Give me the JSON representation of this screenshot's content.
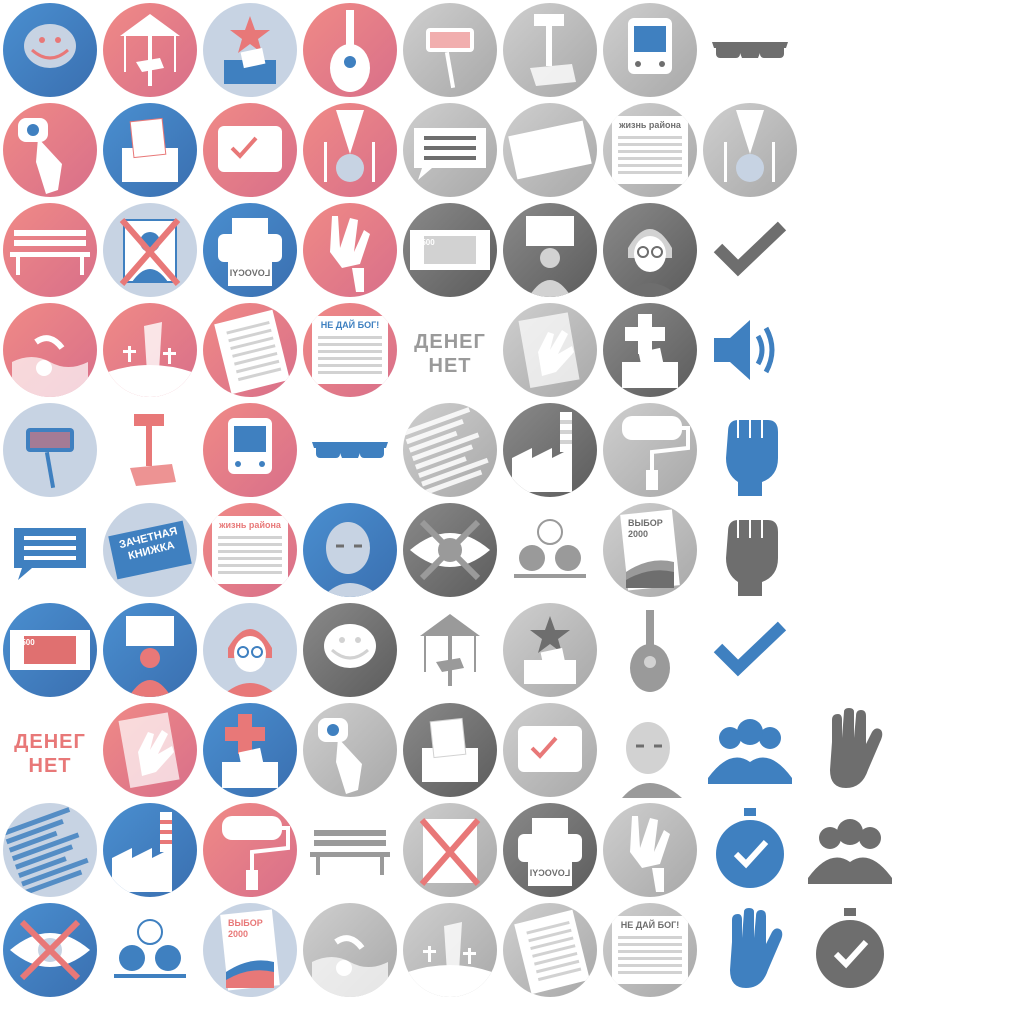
{
  "palette": {
    "red": "#e87878",
    "blue": "#3f80c0",
    "light_blue": "#c7d3e3",
    "dark_gray": "#6e6e6e",
    "mid_gray": "#9a9a9a",
    "light_gray": "#d2d2d2",
    "white": "#ffffff"
  },
  "labels": {
    "money_none": "ДЕНЕГ\nНЕТ",
    "record_book": "ЗАЧЕТНАЯ\nКНИЖКА",
    "district_life": "жизнь района",
    "god_forbid": "НЕ ДАЙ БОГ!",
    "choice_2000": "ВЫБОР\n2000",
    "banknote": "500",
    "mirrored_print": "LOVOCYI"
  },
  "icons": [
    {
      "row": 0,
      "col": 0,
      "name": "troll-face-icon",
      "theme": "blue-bg",
      "label": null
    },
    {
      "row": 0,
      "col": 1,
      "name": "carousel-icon",
      "theme": "red",
      "label": null
    },
    {
      "row": 0,
      "col": 2,
      "name": "star-ballot-icon",
      "theme": "light-blue",
      "label": null
    },
    {
      "row": 0,
      "col": 3,
      "name": "guitar-icon",
      "theme": "red",
      "label": null
    },
    {
      "row": 0,
      "col": 4,
      "name": "selfie-stick-icon",
      "theme": "gray",
      "label": null
    },
    {
      "row": 0,
      "col": 5,
      "name": "hammer-icon",
      "theme": "gray",
      "label": null
    },
    {
      "row": 0,
      "col": 6,
      "name": "bus-speaker-icon",
      "theme": "gray",
      "label": null
    },
    {
      "row": 0,
      "col": 7,
      "name": "sunglasses-icon",
      "theme": "dark",
      "label": null
    },
    {
      "row": 1,
      "col": 0,
      "name": "touch-button-icon",
      "theme": "red",
      "label": null
    },
    {
      "row": 1,
      "col": 1,
      "name": "ballot-box-icon",
      "theme": "blue",
      "label": null
    },
    {
      "row": 1,
      "col": 2,
      "name": "tv-vote-icon",
      "theme": "red",
      "label": null
    },
    {
      "row": 1,
      "col": 3,
      "name": "medal-cutlery-icon",
      "theme": "red",
      "label": null
    },
    {
      "row": 1,
      "col": 4,
      "name": "chat-bubble-icon",
      "theme": "gray",
      "label": null
    },
    {
      "row": 1,
      "col": 5,
      "name": "record-book-icon",
      "theme": "gray",
      "label": "record_book"
    },
    {
      "row": 1,
      "col": 6,
      "name": "newspaper-icon",
      "theme": "gray",
      "label": "district_life"
    },
    {
      "row": 1,
      "col": 7,
      "name": "medal-cutlery-icon",
      "theme": "gray",
      "label": null
    },
    {
      "row": 2,
      "col": 0,
      "name": "bench-icon",
      "theme": "red",
      "label": null
    },
    {
      "row": 2,
      "col": 1,
      "name": "crossed-candidate-icon",
      "theme": "light-blue",
      "label": null
    },
    {
      "row": 2,
      "col": 2,
      "name": "printer-icon",
      "theme": "blue",
      "label": "mirrored_print"
    },
    {
      "row": 2,
      "col": 3,
      "name": "thumbs-down-hand-icon",
      "theme": "red",
      "label": null
    },
    {
      "row": 2,
      "col": 4,
      "name": "banknote-icon",
      "theme": "gray-dark",
      "label": "banknote"
    },
    {
      "row": 2,
      "col": 5,
      "name": "protester-icon",
      "theme": "gray-dark",
      "label": null
    },
    {
      "row": 2,
      "col": 6,
      "name": "grandma-icon",
      "theme": "gray-dark",
      "label": null
    },
    {
      "row": 2,
      "col": 7,
      "name": "checkmark-icon",
      "theme": "dark",
      "label": null
    },
    {
      "row": 3,
      "col": 0,
      "name": "swimmer-icon",
      "theme": "red",
      "label": null
    },
    {
      "row": 3,
      "col": 1,
      "name": "graveyard-icon",
      "theme": "red",
      "label": null
    },
    {
      "row": 3,
      "col": 2,
      "name": "document-list-icon",
      "theme": "red",
      "label": null
    },
    {
      "row": 3,
      "col": 3,
      "name": "newspaper-icon",
      "theme": "red",
      "label": "god_forbid"
    },
    {
      "row": 3,
      "col": 4,
      "name": "money-none-text-icon",
      "theme": "gray-text",
      "label": "money_none"
    },
    {
      "row": 3,
      "col": 5,
      "name": "hand-paper-icon",
      "theme": "gray",
      "label": null
    },
    {
      "row": 3,
      "col": 6,
      "name": "medical-ballot-icon",
      "theme": "gray-dark",
      "label": null
    },
    {
      "row": 3,
      "col": 7,
      "name": "speaker-icon",
      "theme": "blue-plain",
      "label": null
    },
    {
      "row": 4,
      "col": 0,
      "name": "selfie-stick-icon",
      "theme": "light-blue",
      "label": null
    },
    {
      "row": 4,
      "col": 1,
      "name": "hammer-icon",
      "theme": "red-plain",
      "label": null
    },
    {
      "row": 4,
      "col": 2,
      "name": "bus-speaker-icon",
      "theme": "red",
      "label": null
    },
    {
      "row": 4,
      "col": 3,
      "name": "sunglasses-icon",
      "theme": "blue-plain",
      "label": null
    },
    {
      "row": 4,
      "col": 4,
      "name": "shredded-paper-icon",
      "theme": "gray",
      "label": null
    },
    {
      "row": 4,
      "col": 5,
      "name": "factory-icon",
      "theme": "gray-dark",
      "label": null
    },
    {
      "row": 4,
      "col": 6,
      "name": "paint-roller-icon",
      "theme": "gray",
      "label": null
    },
    {
      "row": 4,
      "col": 7,
      "name": "raised-fist-icon",
      "theme": "blue-plain",
      "label": null
    },
    {
      "row": 5,
      "col": 0,
      "name": "chat-bubble-icon",
      "theme": "blue-plain",
      "label": null
    },
    {
      "row": 5,
      "col": 1,
      "name": "record-book-icon",
      "theme": "light-blue",
      "label": "record_book"
    },
    {
      "row": 5,
      "col": 2,
      "name": "newspaper-icon",
      "theme": "red",
      "label": "district_life"
    },
    {
      "row": 5,
      "col": 3,
      "name": "politician-portrait-icon",
      "theme": "blue",
      "label": null
    },
    {
      "row": 5,
      "col": 4,
      "name": "crossed-eye-icon",
      "theme": "gray-dark",
      "label": null
    },
    {
      "row": 5,
      "col": 5,
      "name": "lottery-balls-icon",
      "theme": "gray-plain",
      "label": null
    },
    {
      "row": 5,
      "col": 6,
      "name": "choice-2000-icon",
      "theme": "gray",
      "label": "choice_2000"
    },
    {
      "row": 5,
      "col": 7,
      "name": "raised-fist-icon",
      "theme": "dark",
      "label": null
    },
    {
      "row": 6,
      "col": 0,
      "name": "banknote-icon",
      "theme": "blue",
      "label": "banknote"
    },
    {
      "row": 6,
      "col": 1,
      "name": "protester-icon",
      "theme": "blue",
      "label": null
    },
    {
      "row": 6,
      "col": 2,
      "name": "grandma-icon",
      "theme": "light-blue",
      "label": null
    },
    {
      "row": 6,
      "col": 3,
      "name": "troll-face-icon",
      "theme": "gray-dark",
      "label": null
    },
    {
      "row": 6,
      "col": 4,
      "name": "carousel-icon",
      "theme": "gray-plain",
      "label": null
    },
    {
      "row": 6,
      "col": 5,
      "name": "star-ballot-icon",
      "theme": "gray",
      "label": null
    },
    {
      "row": 6,
      "col": 6,
      "name": "guitar-icon",
      "theme": "gray-plain",
      "label": null
    },
    {
      "row": 6,
      "col": 7,
      "name": "checkmark-icon",
      "theme": "blue-plain",
      "label": null
    },
    {
      "row": 7,
      "col": 0,
      "name": "money-none-text-icon",
      "theme": "red-text",
      "label": "money_none"
    },
    {
      "row": 7,
      "col": 1,
      "name": "hand-paper-icon",
      "theme": "red",
      "label": null
    },
    {
      "row": 7,
      "col": 2,
      "name": "medical-ballot-icon",
      "theme": "blue",
      "label": null
    },
    {
      "row": 7,
      "col": 3,
      "name": "touch-button-icon",
      "theme": "gray",
      "label": null
    },
    {
      "row": 7,
      "col": 4,
      "name": "ballot-box-icon",
      "theme": "gray-dark",
      "label": null
    },
    {
      "row": 7,
      "col": 5,
      "name": "tv-vote-icon",
      "theme": "gray",
      "label": null
    },
    {
      "row": 7,
      "col": 6,
      "name": "politician-portrait-icon",
      "theme": "gray-plain",
      "label": null
    },
    {
      "row": 7,
      "col": 7,
      "name": "group-people-icon",
      "theme": "blue-plain",
      "label": null
    },
    {
      "row": 7,
      "col": 8,
      "name": "raised-hand-icon",
      "theme": "dark",
      "label": null
    },
    {
      "row": 8,
      "col": 0,
      "name": "shredded-paper-icon",
      "theme": "light-blue",
      "label": null
    },
    {
      "row": 8,
      "col": 1,
      "name": "factory-icon",
      "theme": "blue",
      "label": null
    },
    {
      "row": 8,
      "col": 2,
      "name": "paint-roller-icon",
      "theme": "red",
      "label": null
    },
    {
      "row": 8,
      "col": 3,
      "name": "bench-icon",
      "theme": "gray-plain",
      "label": null
    },
    {
      "row": 8,
      "col": 4,
      "name": "crossed-candidate-icon",
      "theme": "gray",
      "label": null
    },
    {
      "row": 8,
      "col": 5,
      "name": "printer-icon",
      "theme": "gray-dark",
      "label": "mirrored_print"
    },
    {
      "row": 8,
      "col": 6,
      "name": "thumbs-down-hand-icon",
      "theme": "gray",
      "label": null
    },
    {
      "row": 8,
      "col": 7,
      "name": "stopwatch-check-icon",
      "theme": "blue-plain",
      "label": null
    },
    {
      "row": 8,
      "col": 8,
      "name": "group-people-icon",
      "theme": "dark",
      "label": null
    },
    {
      "row": 9,
      "col": 0,
      "name": "crossed-eye-icon",
      "theme": "blue",
      "label": null
    },
    {
      "row": 9,
      "col": 1,
      "name": "lottery-balls-icon",
      "theme": "blue-plain",
      "label": null
    },
    {
      "row": 9,
      "col": 2,
      "name": "choice-2000-icon",
      "theme": "light-blue",
      "label": "choice_2000"
    },
    {
      "row": 9,
      "col": 3,
      "name": "swimmer-icon",
      "theme": "gray",
      "label": null
    },
    {
      "row": 9,
      "col": 4,
      "name": "graveyard-icon",
      "theme": "gray",
      "label": null
    },
    {
      "row": 9,
      "col": 5,
      "name": "document-list-icon",
      "theme": "gray",
      "label": null
    },
    {
      "row": 9,
      "col": 6,
      "name": "newspaper-icon",
      "theme": "gray",
      "label": "god_forbid"
    },
    {
      "row": 9,
      "col": 7,
      "name": "raised-hand-icon",
      "theme": "blue-plain",
      "label": null
    },
    {
      "row": 9,
      "col": 8,
      "name": "stopwatch-check-icon",
      "theme": "dark",
      "label": null
    }
  ]
}
